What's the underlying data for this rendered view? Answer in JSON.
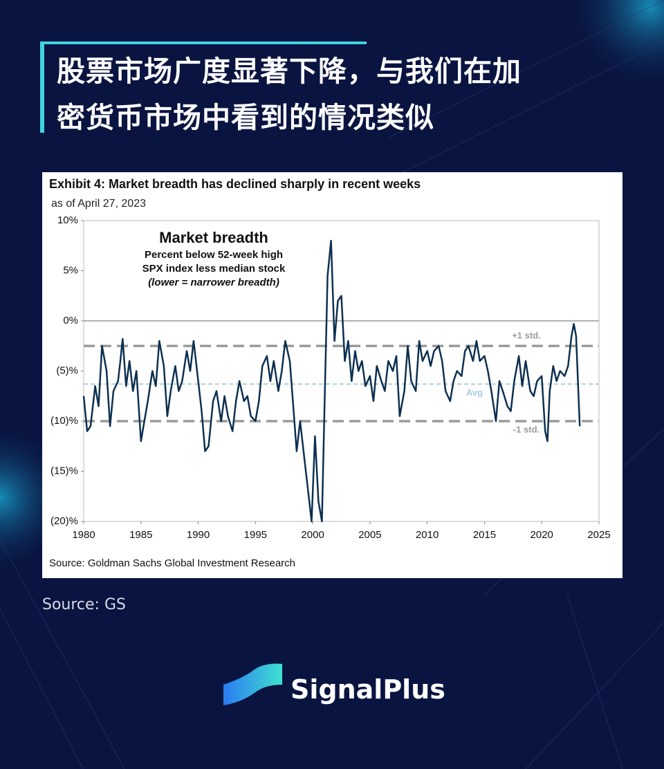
{
  "header": {
    "title_lines": [
      "股票市场广度显著下降，与我们在加",
      "密货币市场中看到的情况类似"
    ]
  },
  "chart_data": {
    "type": "line",
    "title": "Exhibit 4: Market breadth has declined sharply in recent weeks",
    "subtitle": "as of April 27, 2023",
    "annotation": [
      "Market breadth",
      "Percent below 52-week high",
      "SPX index less median stock",
      "(lower = narrower breadth)"
    ],
    "color": "#0d3050",
    "x": [
      1980.0,
      1980.3,
      1980.6,
      1981.0,
      1981.3,
      1981.6,
      1982.0,
      1982.3,
      1982.6,
      1983.0,
      1983.2,
      1983.4,
      1983.7,
      1984.0,
      1984.3,
      1984.6,
      1985.0,
      1985.3,
      1985.6,
      1986.0,
      1986.3,
      1986.6,
      1987.0,
      1987.3,
      1987.6,
      1988.0,
      1988.3,
      1988.6,
      1989.0,
      1989.3,
      1989.6,
      1990.0,
      1990.3,
      1990.6,
      1990.9,
      1991.3,
      1991.6,
      1992.0,
      1992.3,
      1992.6,
      1993.0,
      1993.3,
      1993.6,
      1994.0,
      1994.3,
      1994.6,
      1995.0,
      1995.3,
      1995.6,
      1996.0,
      1996.3,
      1996.6,
      1997.0,
      1997.3,
      1997.6,
      1998.0,
      1998.3,
      1998.6,
      1998.9,
      1999.3,
      1999.6,
      1999.9,
      2000.2,
      2000.5,
      2000.8,
      2001.0,
      2001.3,
      2001.6,
      2001.9,
      2002.2,
      2002.5,
      2002.8,
      2003.1,
      2003.4,
      2003.7,
      2004.0,
      2004.3,
      2004.6,
      2005.0,
      2005.3,
      2005.6,
      2006.0,
      2006.3,
      2006.6,
      2007.0,
      2007.3,
      2007.6,
      2008.0,
      2008.3,
      2008.6,
      2009.0,
      2009.3,
      2009.6,
      2010.0,
      2010.3,
      2010.6,
      2011.0,
      2011.3,
      2011.6,
      2012.0,
      2012.3,
      2012.6,
      2013.0,
      2013.3,
      2013.6,
      2014.0,
      2014.3,
      2014.6,
      2015.0,
      2015.3,
      2015.6,
      2016.0,
      2016.3,
      2016.6,
      2017.0,
      2017.3,
      2017.6,
      2018.0,
      2018.3,
      2018.6,
      2019.0,
      2019.3,
      2019.6,
      2020.0,
      2020.3,
      2020.5,
      2020.7,
      2021.0,
      2021.3,
      2021.6,
      2022.0,
      2022.3,
      2022.6,
      2022.8,
      2023.0,
      2023.32
    ],
    "values": [
      -7.5,
      -11,
      -10.5,
      -6.5,
      -8.5,
      -2.5,
      -5,
      -10.5,
      -7,
      -6,
      -4,
      -1.8,
      -6.5,
      -4,
      -7,
      -5,
      -12,
      -10,
      -8,
      -5,
      -6.5,
      -2,
      -4.5,
      -9.5,
      -7,
      -4.5,
      -7,
      -6,
      -3,
      -5,
      -2,
      -6,
      -9,
      -13,
      -12.5,
      -8,
      -7,
      -10,
      -7.5,
      -9.5,
      -11,
      -8,
      -6,
      -8,
      -7.5,
      -9.5,
      -10,
      -8,
      -4.5,
      -3.5,
      -6,
      -4,
      -7,
      -5,
      -2,
      -4,
      -8.5,
      -13,
      -10,
      -14,
      -17,
      -20,
      -11.5,
      -18,
      -20,
      -10,
      4.5,
      8,
      -2,
      2,
      2.5,
      -4,
      -2,
      -6,
      -3,
      -5,
      -4,
      -6.5,
      -5.5,
      -8,
      -4.5,
      -6,
      -7,
      -4,
      -5,
      -3.5,
      -9.5,
      -7,
      -2.5,
      -6,
      -7,
      -2,
      -4,
      -3,
      -4.5,
      -3,
      -2.5,
      -4,
      -7,
      -8,
      -6,
      -5,
      -5.5,
      -3,
      -2.5,
      -4,
      -2,
      -4,
      -3.5,
      -5,
      -7,
      -10,
      -6,
      -7,
      -8.5,
      -9,
      -6,
      -3.5,
      -6.5,
      -4,
      -7,
      -7.5,
      -6,
      -5.5,
      -11,
      -12,
      -7,
      -4.5,
      -6,
      -5,
      -5.5,
      -4.5,
      -1.5,
      -0.3,
      -1.5,
      -10.5
    ],
    "reference_lines": [
      {
        "label": "+1 std.",
        "value": -2.5,
        "color": "#9a9a9a"
      },
      {
        "label": "Avg",
        "value": -6.3,
        "color": "#a9cde0"
      },
      {
        "label": "-1 std.",
        "value": -10,
        "color": "#9a9a9a"
      }
    ],
    "xlim": [
      1980,
      2025
    ],
    "xticks": [
      1980,
      1985,
      1990,
      1995,
      2000,
      2005,
      2010,
      2015,
      2020,
      2025
    ],
    "ylim": [
      -20,
      10
    ],
    "yticks": [
      {
        "value": 10,
        "label": "10%"
      },
      {
        "value": 5,
        "label": "5%"
      },
      {
        "value": 0,
        "label": "0%"
      },
      {
        "value": -5,
        "label": "(5)%"
      },
      {
        "value": -10,
        "label": "(10)%"
      },
      {
        "value": -15,
        "label": "(15)%"
      },
      {
        "value": -20,
        "label": "(20)%"
      }
    ],
    "zero_line": true,
    "source": "Source: Goldman Sachs Global Investment Research"
  },
  "caption": "Source: GS",
  "brand": "SignalPlus"
}
